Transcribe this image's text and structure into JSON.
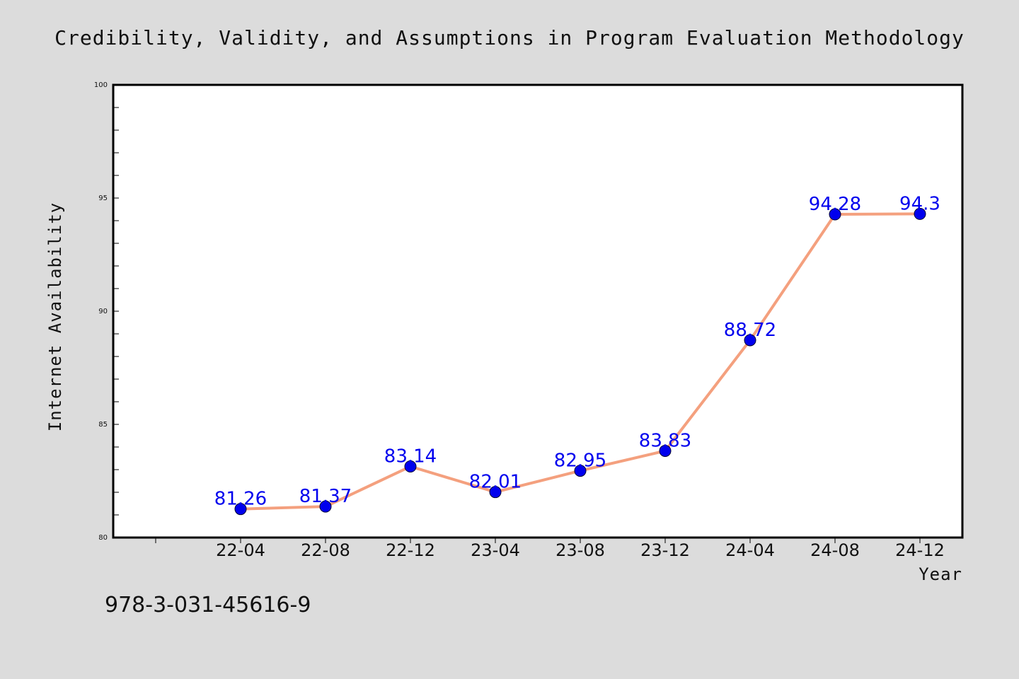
{
  "chart_data": {
    "type": "line",
    "title": "Credibility, Validity, and Assumptions in Program Evaluation Methodology",
    "xlabel": "Year",
    "ylabel": "Internet Availability",
    "categories": [
      "22-04",
      "22-08",
      "22-12",
      "23-04",
      "23-08",
      "23-12",
      "24-04",
      "24-08",
      "24-12"
    ],
    "values": [
      81.26,
      81.37,
      83.14,
      82.01,
      82.95,
      83.83,
      88.72,
      94.28,
      94.3
    ],
    "data_labels": [
      "81.26",
      "81.37",
      "83.14",
      "82.01",
      "82.95",
      "83.83",
      "88.72",
      "94.28",
      "94.3"
    ],
    "ylim": [
      80,
      100
    ],
    "yticks": [
      "80",
      "85",
      "90",
      "95",
      "100"
    ],
    "grid": false,
    "line_color": "#f4a07e",
    "marker_color": "#0000ee",
    "label_color": "#0000ee",
    "background": "#dcdcdc",
    "plot_background": "#ffffff"
  },
  "footer": {
    "isbn": "978-3-031-45616-9"
  }
}
